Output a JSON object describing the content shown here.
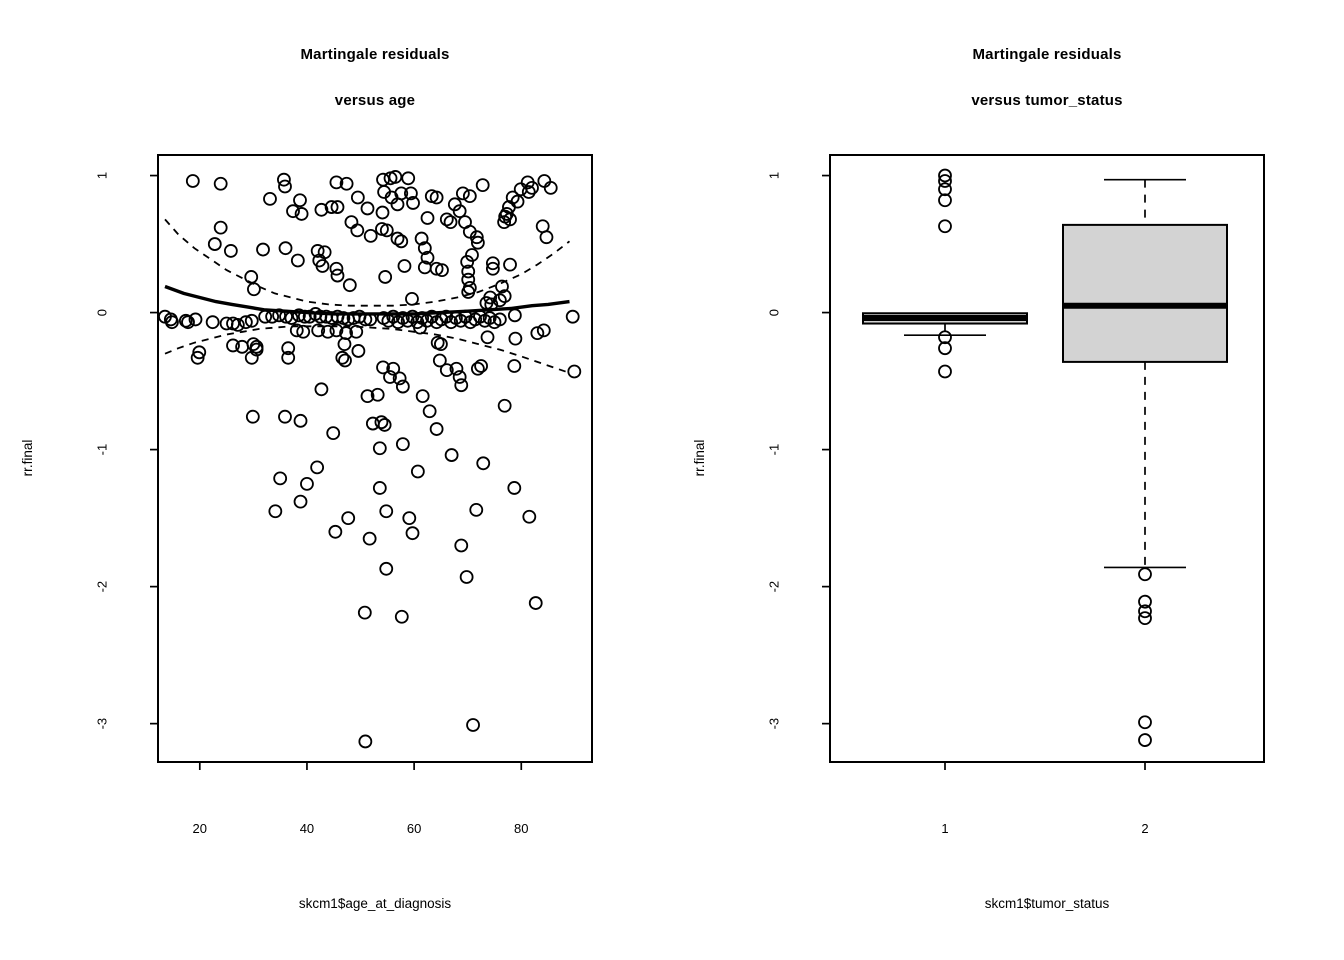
{
  "figure": {
    "background": "#ffffff",
    "stroke_color": "#000000",
    "box_fill": "#d3d3d3"
  },
  "chart_data": [
    {
      "type": "scatter",
      "title": "Martingale residuals",
      "subtitle": "versus age",
      "xlabel": "skcm1$age_at_diagnosis",
      "ylabel": "rr.final",
      "x_ticks": [
        20,
        40,
        60,
        80
      ],
      "y_ticks": [
        1,
        0,
        -1,
        -2,
        -3
      ],
      "xlim": [
        12.2,
        93.2
      ],
      "ylim": [
        -3.28,
        1.15
      ],
      "grid": false,
      "legend": null,
      "points": [
        [
          18.7,
          0.96
        ],
        [
          23.9,
          0.94
        ],
        [
          35.7,
          0.97
        ],
        [
          35.9,
          0.92
        ],
        [
          33.1,
          0.83
        ],
        [
          38.7,
          0.82
        ],
        [
          37.4,
          0.74
        ],
        [
          39.0,
          0.72
        ],
        [
          42.7,
          0.75
        ],
        [
          44.6,
          0.77
        ],
        [
          45.7,
          0.77
        ],
        [
          45.5,
          0.95
        ],
        [
          47.4,
          0.94
        ],
        [
          49.5,
          0.84
        ],
        [
          48.3,
          0.66
        ],
        [
          49.4,
          0.6
        ],
        [
          51.3,
          0.76
        ],
        [
          51.9,
          0.56
        ],
        [
          23.9,
          0.62
        ],
        [
          22.8,
          0.5
        ],
        [
          25.8,
          0.45
        ],
        [
          31.8,
          0.46
        ],
        [
          36.0,
          0.47
        ],
        [
          38.3,
          0.38
        ],
        [
          42.0,
          0.45
        ],
        [
          43.3,
          0.44
        ],
        [
          42.3,
          0.38
        ],
        [
          42.9,
          0.34
        ],
        [
          45.5,
          0.32
        ],
        [
          45.7,
          0.27
        ],
        [
          48.0,
          0.2
        ],
        [
          29.6,
          0.26
        ],
        [
          30.1,
          0.17
        ],
        [
          14.6,
          -0.05
        ],
        [
          17.4,
          -0.06
        ],
        [
          17.8,
          -0.07
        ],
        [
          19.2,
          -0.05
        ],
        [
          22.4,
          -0.07
        ],
        [
          25.0,
          -0.08
        ],
        [
          26.2,
          -0.08
        ],
        [
          27.1,
          -0.09
        ],
        [
          28.6,
          -0.07
        ],
        [
          29.7,
          -0.06
        ],
        [
          32.2,
          -0.03
        ],
        [
          33.5,
          -0.03
        ],
        [
          34.8,
          -0.02
        ],
        [
          36.1,
          -0.03
        ],
        [
          37.1,
          -0.04
        ],
        [
          38.5,
          -0.02
        ],
        [
          39.6,
          -0.03
        ],
        [
          40.5,
          -0.03
        ],
        [
          41.6,
          -0.01
        ],
        [
          42.5,
          -0.03
        ],
        [
          43.6,
          -0.03
        ],
        [
          44.6,
          -0.04
        ],
        [
          45.7,
          -0.03
        ],
        [
          46.8,
          -0.04
        ],
        [
          47.7,
          -0.05
        ],
        [
          48.7,
          -0.04
        ],
        [
          49.8,
          -0.03
        ],
        [
          50.9,
          -0.05
        ],
        [
          51.8,
          -0.05
        ],
        [
          38.1,
          -0.13
        ],
        [
          39.3,
          -0.14
        ],
        [
          42.1,
          -0.13
        ],
        [
          43.9,
          -0.14
        ],
        [
          45.5,
          -0.13
        ],
        [
          47.3,
          -0.15
        ],
        [
          49.2,
          -0.14
        ],
        [
          26.2,
          -0.24
        ],
        [
          30.6,
          -0.25
        ],
        [
          36.5,
          -0.26
        ],
        [
          47.0,
          -0.23
        ],
        [
          49.6,
          -0.28
        ],
        [
          19.9,
          -0.29
        ],
        [
          27.9,
          -0.25
        ],
        [
          30.0,
          -0.23
        ],
        [
          30.6,
          -0.27
        ],
        [
          13.5,
          -0.03
        ],
        [
          14.8,
          -0.07
        ],
        [
          54.2,
          0.97
        ],
        [
          55.6,
          0.98
        ],
        [
          56.5,
          0.99
        ],
        [
          54.4,
          0.88
        ],
        [
          55.8,
          0.84
        ],
        [
          57.6,
          0.87
        ],
        [
          58.9,
          0.98
        ],
        [
          59.4,
          0.87
        ],
        [
          59.8,
          0.8
        ],
        [
          56.9,
          0.79
        ],
        [
          54.1,
          0.73
        ],
        [
          63.3,
          0.85
        ],
        [
          64.2,
          0.84
        ],
        [
          62.5,
          0.69
        ],
        [
          66.8,
          0.66
        ],
        [
          67.6,
          0.79
        ],
        [
          68.5,
          0.74
        ],
        [
          69.1,
          0.87
        ],
        [
          70.4,
          0.85
        ],
        [
          72.8,
          0.93
        ],
        [
          81.2,
          0.95
        ],
        [
          82.0,
          0.91
        ],
        [
          81.4,
          0.88
        ],
        [
          79.9,
          0.9
        ],
        [
          84.3,
          0.96
        ],
        [
          85.5,
          0.91
        ],
        [
          78.4,
          0.84
        ],
        [
          79.3,
          0.81
        ],
        [
          77.7,
          0.77
        ],
        [
          77.0,
          0.7
        ],
        [
          76.8,
          0.66
        ],
        [
          66.1,
          0.68
        ],
        [
          69.5,
          0.66
        ],
        [
          70.4,
          0.59
        ],
        [
          71.7,
          0.55
        ],
        [
          71.9,
          0.51
        ],
        [
          70.8,
          0.42
        ],
        [
          69.9,
          0.37
        ],
        [
          70.1,
          0.3
        ],
        [
          70.1,
          0.24
        ],
        [
          70.4,
          0.18
        ],
        [
          70.1,
          0.15
        ],
        [
          77.3,
          0.72
        ],
        [
          77.9,
          0.68
        ],
        [
          74.7,
          0.36
        ],
        [
          77.9,
          0.35
        ],
        [
          76.4,
          0.19
        ],
        [
          76.9,
          0.12
        ],
        [
          74.2,
          0.11
        ],
        [
          76.0,
          0.09
        ],
        [
          54.9,
          0.6
        ],
        [
          56.9,
          0.54
        ],
        [
          57.6,
          0.52
        ],
        [
          61.4,
          0.54
        ],
        [
          62.0,
          0.47
        ],
        [
          62.5,
          0.4
        ],
        [
          58.2,
          0.34
        ],
        [
          62.0,
          0.33
        ],
        [
          64.2,
          0.32
        ],
        [
          65.2,
          0.31
        ],
        [
          84.0,
          0.63
        ],
        [
          84.7,
          0.55
        ],
        [
          74.7,
          0.32
        ],
        [
          54.0,
          0.61
        ],
        [
          54.6,
          0.26
        ],
        [
          59.6,
          0.1
        ],
        [
          73.5,
          0.07
        ],
        [
          74.4,
          0.06
        ],
        [
          89.6,
          -0.03
        ],
        [
          54.3,
          -0.04
        ],
        [
          55.2,
          -0.06
        ],
        [
          56.1,
          -0.03
        ],
        [
          57.0,
          -0.07
        ],
        [
          57.9,
          -0.04
        ],
        [
          58.8,
          -0.06
        ],
        [
          59.7,
          -0.03
        ],
        [
          60.6,
          -0.07
        ],
        [
          61.5,
          -0.04
        ],
        [
          62.4,
          -0.06
        ],
        [
          63.3,
          -0.03
        ],
        [
          64.2,
          -0.07
        ],
        [
          65.1,
          -0.05
        ],
        [
          66.0,
          -0.03
        ],
        [
          66.9,
          -0.07
        ],
        [
          67.8,
          -0.04
        ],
        [
          68.7,
          -0.06
        ],
        [
          69.6,
          -0.03
        ],
        [
          70.5,
          -0.07
        ],
        [
          71.4,
          -0.05
        ],
        [
          72.3,
          -0.03
        ],
        [
          73.2,
          -0.06
        ],
        [
          74.1,
          -0.04
        ],
        [
          75.0,
          -0.07
        ],
        [
          76.0,
          -0.05
        ],
        [
          78.8,
          -0.02
        ],
        [
          61.1,
          -0.11
        ],
        [
          64.4,
          -0.22
        ],
        [
          65.0,
          -0.23
        ],
        [
          73.7,
          -0.18
        ],
        [
          78.9,
          -0.19
        ],
        [
          83.0,
          -0.15
        ],
        [
          84.2,
          -0.13
        ],
        [
          19.6,
          -0.33
        ],
        [
          29.7,
          -0.33
        ],
        [
          36.5,
          -0.33
        ],
        [
          46.6,
          -0.33
        ],
        [
          47.1,
          -0.35
        ],
        [
          42.7,
          -0.56
        ],
        [
          51.3,
          -0.61
        ],
        [
          29.9,
          -0.76
        ],
        [
          35.9,
          -0.76
        ],
        [
          38.8,
          -0.79
        ],
        [
          44.9,
          -0.88
        ],
        [
          52.3,
          -0.81
        ],
        [
          35.0,
          -1.21
        ],
        [
          41.9,
          -1.13
        ],
        [
          40.0,
          -1.25
        ],
        [
          38.8,
          -1.38
        ],
        [
          34.1,
          -1.45
        ],
        [
          47.7,
          -1.5
        ],
        [
          45.3,
          -1.6
        ],
        [
          51.7,
          -1.65
        ],
        [
          54.2,
          -0.4
        ],
        [
          56.1,
          -0.41
        ],
        [
          55.5,
          -0.47
        ],
        [
          57.3,
          -0.48
        ],
        [
          57.9,
          -0.54
        ],
        [
          64.8,
          -0.35
        ],
        [
          66.1,
          -0.42
        ],
        [
          67.9,
          -0.41
        ],
        [
          68.5,
          -0.47
        ],
        [
          68.8,
          -0.53
        ],
        [
          71.9,
          -0.41
        ],
        [
          72.5,
          -0.39
        ],
        [
          78.7,
          -0.39
        ],
        [
          89.9,
          -0.43
        ],
        [
          61.6,
          -0.61
        ],
        [
          62.9,
          -0.72
        ],
        [
          76.9,
          -0.68
        ],
        [
          64.2,
          -0.85
        ],
        [
          54.5,
          -0.82
        ],
        [
          53.9,
          -0.8
        ],
        [
          53.6,
          -0.99
        ],
        [
          57.9,
          -0.96
        ],
        [
          67.0,
          -1.04
        ],
        [
          72.9,
          -1.1
        ],
        [
          60.7,
          -1.16
        ],
        [
          53.6,
          -1.28
        ],
        [
          78.7,
          -1.28
        ],
        [
          54.8,
          -1.45
        ],
        [
          59.1,
          -1.5
        ],
        [
          71.6,
          -1.44
        ],
        [
          81.5,
          -1.49
        ],
        [
          59.7,
          -1.61
        ],
        [
          68.8,
          -1.7
        ],
        [
          53.2,
          -0.6
        ],
        [
          54.8,
          -1.87
        ],
        [
          69.8,
          -1.93
        ],
        [
          82.7,
          -2.12
        ],
        [
          50.8,
          -2.19
        ],
        [
          57.7,
          -2.22
        ],
        [
          71.0,
          -3.01
        ],
        [
          50.9,
          -3.13
        ]
      ],
      "smooth_line": [
        [
          13.5,
          0.19
        ],
        [
          17,
          0.14
        ],
        [
          20,
          0.11
        ],
        [
          23,
          0.08
        ],
        [
          26,
          0.06
        ],
        [
          29,
          0.04
        ],
        [
          32,
          0.02
        ],
        [
          36,
          0.01
        ],
        [
          40,
          0.0
        ],
        [
          45,
          -0.01
        ],
        [
          50,
          -0.01
        ],
        [
          55,
          -0.01
        ],
        [
          60,
          -0.01
        ],
        [
          65,
          0.0
        ],
        [
          70,
          0.01
        ],
        [
          74,
          0.02
        ],
        [
          78,
          0.03
        ],
        [
          82,
          0.05
        ],
        [
          85,
          0.06
        ],
        [
          89,
          0.08
        ]
      ],
      "upper_band": [
        [
          13.5,
          0.68
        ],
        [
          16,
          0.57
        ],
        [
          19,
          0.47
        ],
        [
          22,
          0.39
        ],
        [
          25,
          0.31
        ],
        [
          28,
          0.25
        ],
        [
          31,
          0.19
        ],
        [
          34,
          0.14
        ],
        [
          37,
          0.11
        ],
        [
          40,
          0.08
        ],
        [
          44,
          0.06
        ],
        [
          48,
          0.05
        ],
        [
          52,
          0.05
        ],
        [
          56,
          0.05
        ],
        [
          60,
          0.06
        ],
        [
          64,
          0.08
        ],
        [
          68,
          0.11
        ],
        [
          72,
          0.15
        ],
        [
          76,
          0.21
        ],
        [
          80,
          0.28
        ],
        [
          83,
          0.35
        ],
        [
          86,
          0.43
        ],
        [
          89,
          0.52
        ]
      ],
      "lower_band": [
        [
          13.5,
          -0.3
        ],
        [
          16,
          -0.26
        ],
        [
          19,
          -0.22
        ],
        [
          22,
          -0.19
        ],
        [
          25,
          -0.16
        ],
        [
          28,
          -0.14
        ],
        [
          31,
          -0.12
        ],
        [
          34,
          -0.11
        ],
        [
          37,
          -0.1
        ],
        [
          40,
          -0.1
        ],
        [
          44,
          -0.1
        ],
        [
          48,
          -0.1
        ],
        [
          52,
          -0.11
        ],
        [
          56,
          -0.12
        ],
        [
          60,
          -0.14
        ],
        [
          64,
          -0.16
        ],
        [
          68,
          -0.19
        ],
        [
          72,
          -0.23
        ],
        [
          76,
          -0.27
        ],
        [
          80,
          -0.32
        ],
        [
          83,
          -0.36
        ],
        [
          86,
          -0.4
        ],
        [
          89,
          -0.44
        ]
      ]
    },
    {
      "type": "box",
      "title": "Martingale residuals",
      "subtitle": "versus tumor_status",
      "xlabel": "skcm1$tumor_status",
      "ylabel": "rr.final",
      "categories": [
        "1",
        "2"
      ],
      "y_ticks": [
        1,
        0,
        -1,
        -2,
        -3
      ],
      "ylim": [
        -3.28,
        1.15
      ],
      "grid": false,
      "legend": null,
      "boxes": [
        {
          "category": "1",
          "whisker_low": -0.165,
          "q1": -0.08,
          "median": -0.04,
          "q3": -0.005,
          "whisker_high": -0.005,
          "outliers": [
            1.0,
            0.96,
            0.9,
            0.82,
            0.63,
            -0.18,
            -0.26,
            -0.43
          ]
        },
        {
          "category": "2",
          "whisker_low": -1.86,
          "q1": -0.36,
          "median": 0.05,
          "q3": 0.64,
          "whisker_high": 0.97,
          "outliers": [
            -1.91,
            -2.11,
            -2.18,
            -2.23,
            -2.99,
            -3.12
          ]
        }
      ]
    }
  ]
}
